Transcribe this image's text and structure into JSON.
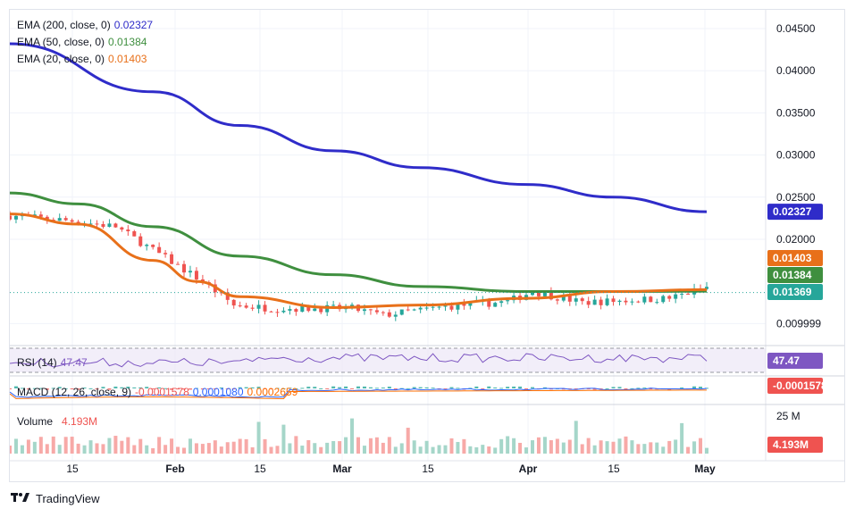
{
  "legend": {
    "ema200": {
      "label": "EMA (200, close, 0)",
      "value": "0.02327",
      "color": "#2f2cc9"
    },
    "ema50": {
      "label": "EMA (50, close, 0)",
      "value": "0.01384",
      "color": "#3f8f3f"
    },
    "ema20": {
      "label": "EMA (20, close, 0)",
      "value": "0.01403",
      "color": "#e8701a"
    },
    "rsi": {
      "label": "RSI (14)",
      "value": "47.47",
      "color": "#7e57c2"
    },
    "macd": {
      "label": "MACD (12, 26, close, 9)",
      "hist": "-0.0001578",
      "macd": "0.0001080",
      "signal": "0.0002659"
    },
    "volume": {
      "label": "Volume",
      "value": "4.193M"
    }
  },
  "price_axis": [
    "0.04500",
    "0.04000",
    "0.03500",
    "0.03000",
    "0.02500",
    "0.02000",
    "0.009999"
  ],
  "badges": {
    "ema200": "0.02327",
    "ema20": "0.01403",
    "ema50": "0.01384",
    "last": "0.01369",
    "rsi": "47.47",
    "macd": "-0.0001578",
    "volume": "4.193M"
  },
  "volume_axis": "25 M",
  "time_axis": [
    "15",
    "Feb",
    "15",
    "Mar",
    "15",
    "Apr",
    "15",
    "May"
  ],
  "footer": {
    "brand": "TradingView"
  },
  "colors": {
    "up": "#26a69a",
    "down": "#ef5350",
    "ema200": "#2f2cc9",
    "ema50": "#3f8f3f",
    "ema20": "#e8701a",
    "rsi": "#7e57c2",
    "macd": "#2962ff",
    "signal": "#ff6d00"
  },
  "chart_data": {
    "type": "line",
    "x_range": [
      "Jan 09",
      "Apr 30"
    ],
    "ylim": [
      0.009,
      0.0465
    ],
    "series": [
      {
        "name": "EMA (200, close, 0)",
        "x": [
          "Jan 09",
          "Feb 01",
          "Feb 15",
          "Mar 01",
          "Mar 15",
          "Apr 01",
          "Apr 15",
          "Apr 30"
        ],
        "values": [
          0.0432,
          0.0375,
          0.0335,
          0.0305,
          0.0285,
          0.0265,
          0.025,
          0.02327
        ]
      },
      {
        "name": "EMA (50, close, 0)",
        "x": [
          "Jan 09",
          "Jan 20",
          "Feb 01",
          "Feb 15",
          "Mar 01",
          "Mar 15",
          "Apr 01",
          "Apr 15",
          "Apr 30"
        ],
        "values": [
          0.0255,
          0.0242,
          0.0215,
          0.018,
          0.0158,
          0.0144,
          0.0138,
          0.0138,
          0.01384
        ]
      },
      {
        "name": "EMA (20, close, 0)",
        "x": [
          "Jan 09",
          "Jan 20",
          "Feb 01",
          "Feb 08",
          "Feb 15",
          "Mar 01",
          "Mar 15",
          "Apr 01",
          "Apr 15",
          "Apr 30"
        ],
        "values": [
          0.023,
          0.0218,
          0.0175,
          0.015,
          0.0132,
          0.0119,
          0.0122,
          0.013,
          0.0138,
          0.01403
        ]
      }
    ],
    "candles": {
      "start": "Jan 09",
      "end": "Apr 30",
      "close_path": [
        [
          0,
          0.0228
        ],
        [
          10,
          0.0222
        ],
        [
          17,
          0.0215
        ],
        [
          25,
          0.0178
        ],
        [
          31,
          0.015
        ],
        [
          36,
          0.0122
        ],
        [
          42,
          0.0118
        ],
        [
          55,
          0.0118
        ],
        [
          60,
          0.011
        ],
        [
          70,
          0.012
        ],
        [
          80,
          0.0126
        ],
        [
          84,
          0.0138
        ],
        [
          92,
          0.0125
        ],
        [
          106,
          0.013
        ],
        [
          113,
          0.0145
        ],
        [
          120,
          0.0145
        ],
        [
          130,
          0.01369
        ]
      ]
    },
    "rsi": {
      "value": 47.47,
      "upper": 70,
      "lower": 30
    },
    "macd": {
      "hist": -0.0001578,
      "macd": 0.000108,
      "signal": 0.0002659
    },
    "volume": {
      "last": "4.193M",
      "scale_max": "25 M"
    }
  }
}
